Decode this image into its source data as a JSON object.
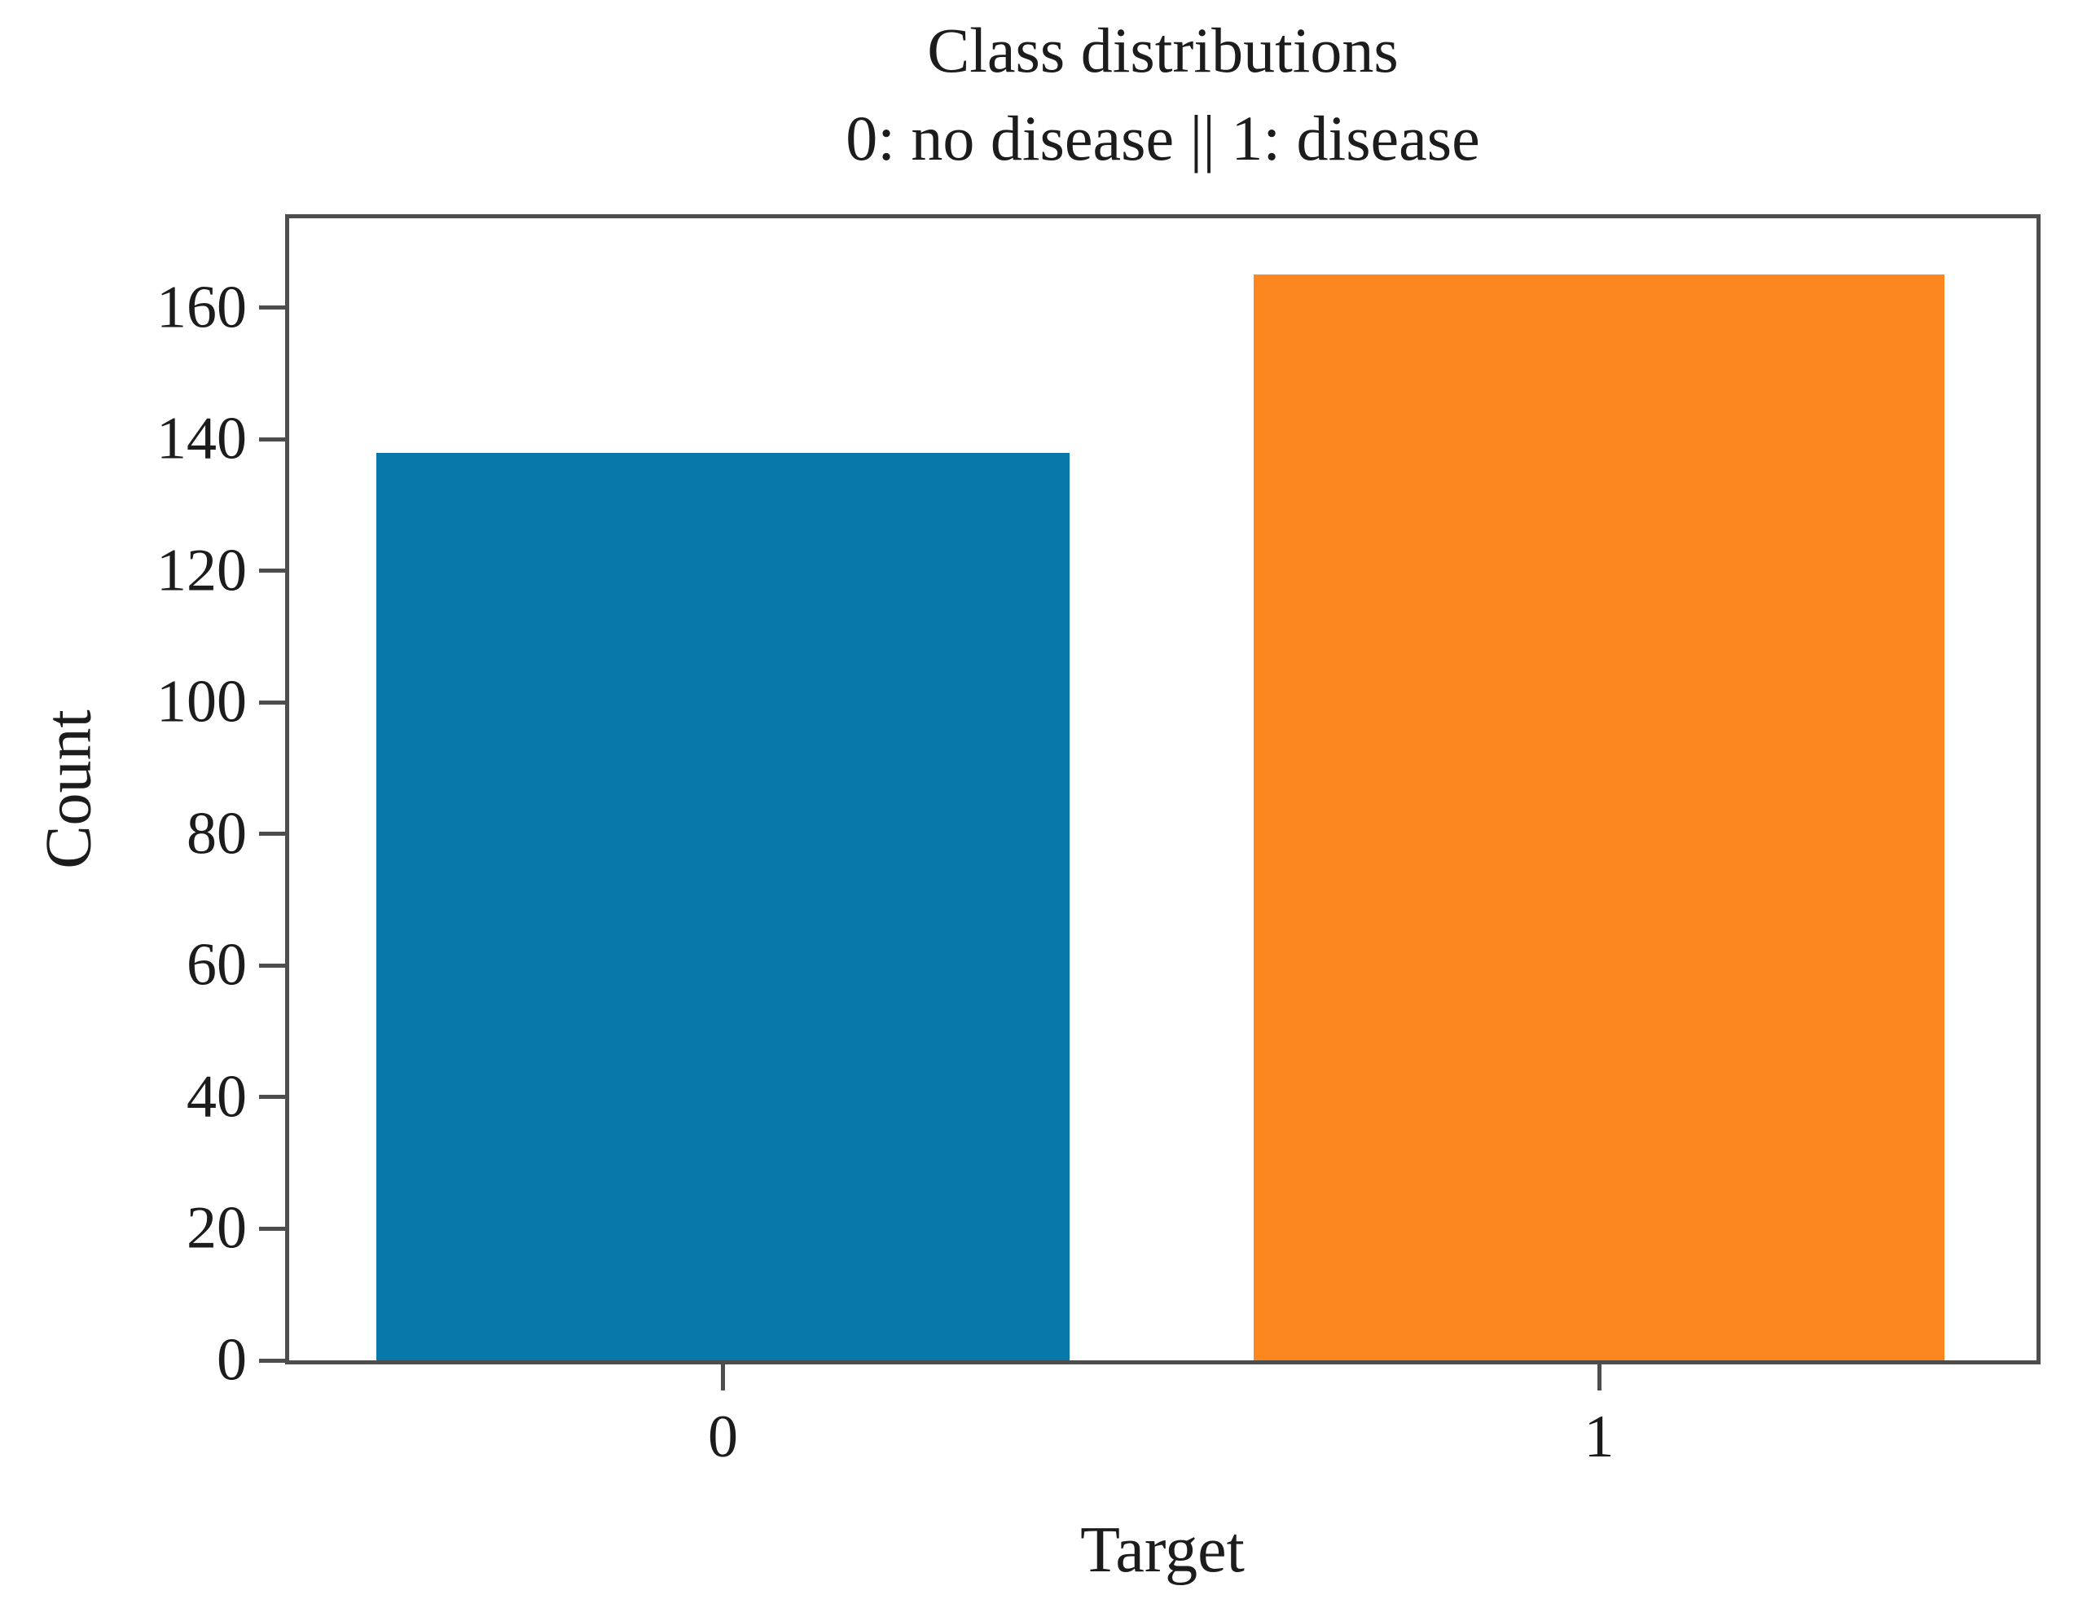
{
  "figure": {
    "title": "Class distributions",
    "subtitle": "0: no disease || 1: disease"
  },
  "chart_data": {
    "type": "bar",
    "title": "Class distributions",
    "subtitle": "0: no disease || 1: disease",
    "categories": [
      "0",
      "1"
    ],
    "values": [
      138,
      165
    ],
    "series": [
      {
        "name": "Target = 0 (no disease)",
        "value": 138,
        "color": "#0878aa"
      },
      {
        "name": "Target = 1 (disease)",
        "value": 165,
        "color": "#fd861f"
      }
    ],
    "xlabel": "Target",
    "ylabel": "Count",
    "ylim": [
      0,
      173.6
    ],
    "yticks": [
      0,
      20,
      40,
      60,
      80,
      100,
      120,
      140,
      160
    ],
    "grid": false,
    "legend": "none",
    "bar_colors": [
      "#0878aa",
      "#fd861f"
    ],
    "axis_color": "#4d4d4d",
    "text_color": "#1c1c1c",
    "background_color": "#ffffff"
  }
}
